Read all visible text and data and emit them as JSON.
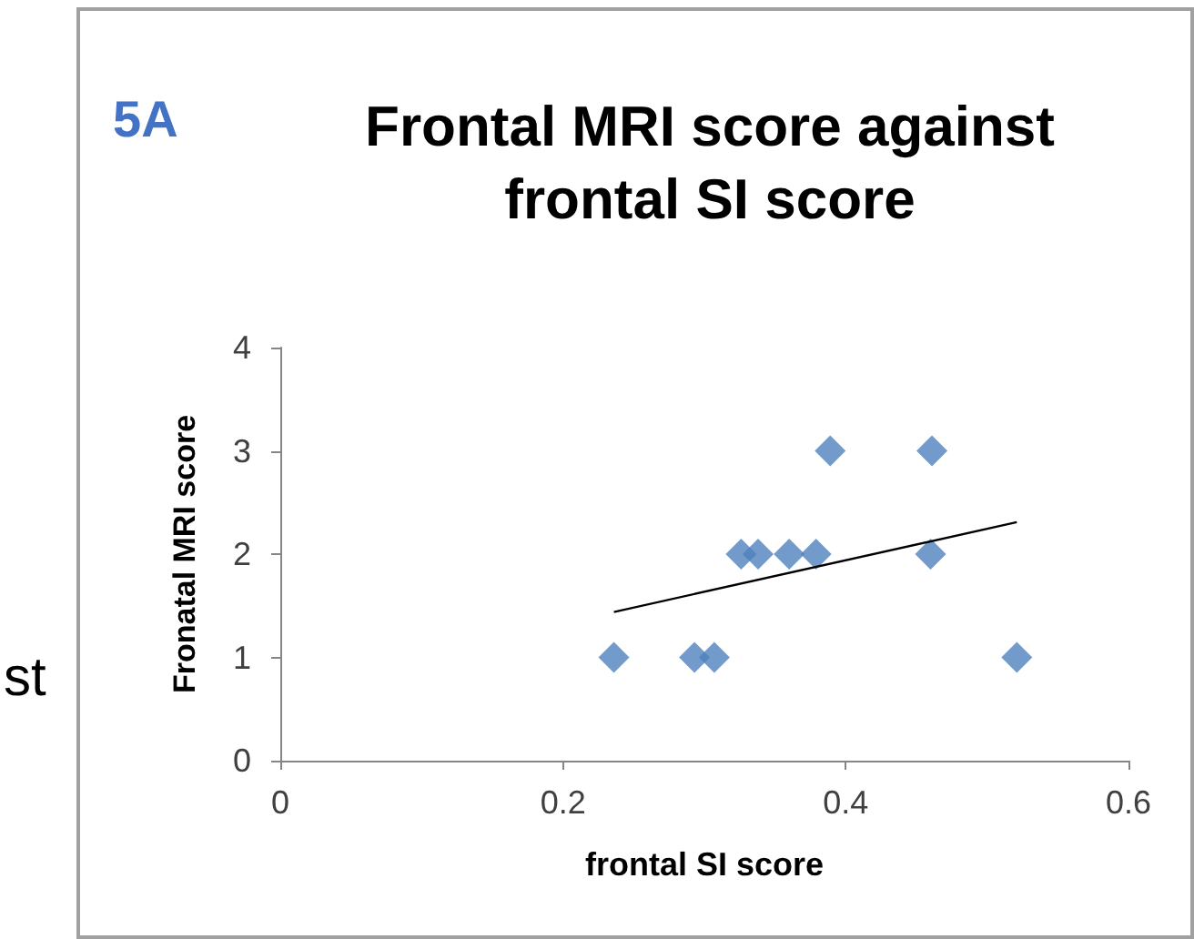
{
  "chart_data": {
    "type": "scatter",
    "title": "Frontal MRI score against frontal SI score",
    "xlabel": "frontal SI score",
    "ylabel": "Fronatal MRI score",
    "annotations": [
      "5A",
      "st"
    ],
    "series": [
      {
        "color": "#4f81bd",
        "marker": "diamond",
        "x": [
          0.236,
          0.293,
          0.307,
          0.326,
          0.338,
          0.36,
          0.379,
          0.389,
          0.461,
          0.46,
          0.521
        ],
        "values": [
          1,
          1,
          1,
          2,
          2,
          2,
          2,
          3,
          3,
          2,
          1
        ]
      },
      {
        "type": "line",
        "color": "#000000",
        "marker": "none",
        "x": [
          0.236,
          0.521
        ],
        "values": [
          1.44,
          2.31
        ]
      }
    ],
    "xlim": [
      0,
      0.6
    ],
    "xticks": [
      0,
      0.2,
      0.4,
      0.6
    ],
    "ylim": [
      0,
      4
    ],
    "yticks": [
      0,
      1,
      2,
      3,
      4
    ],
    "grid": false
  }
}
